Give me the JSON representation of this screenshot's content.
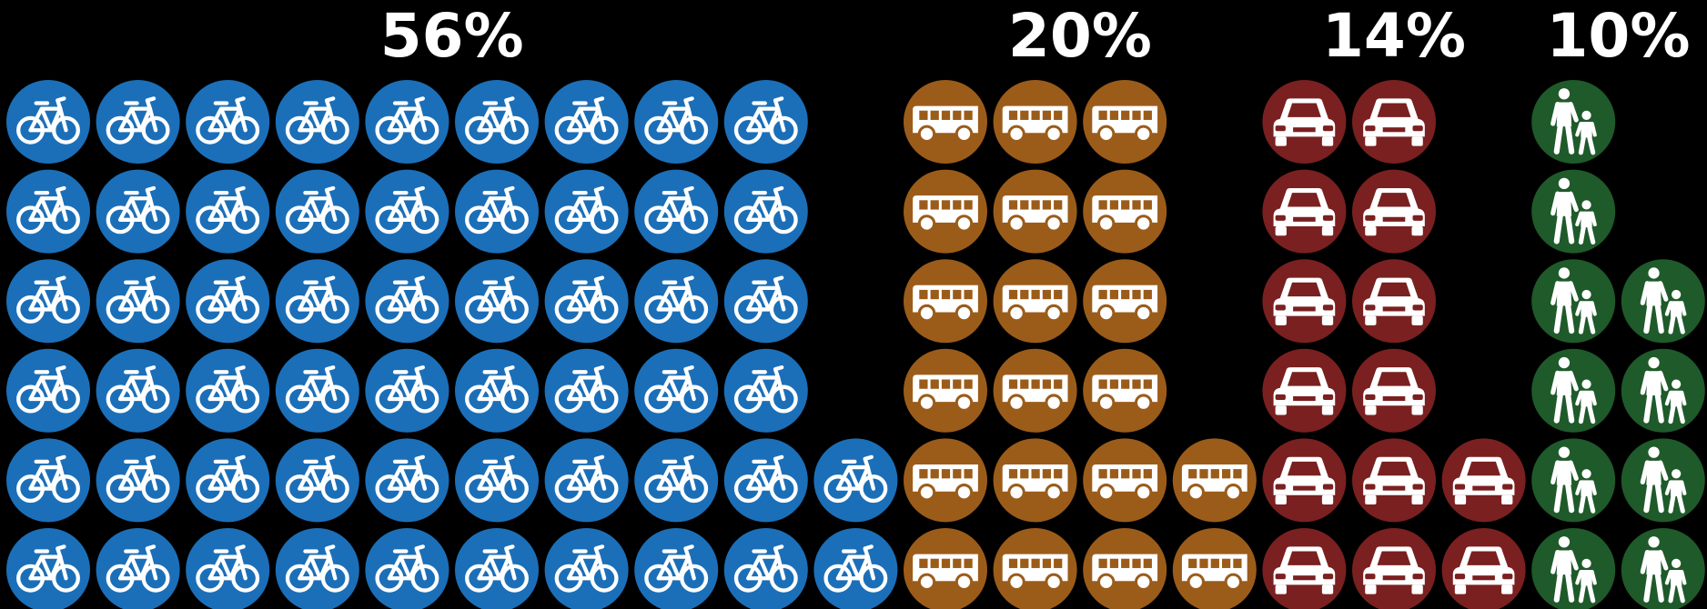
{
  "chart_data": {
    "type": "pictogram",
    "series": [
      {
        "name": "bike",
        "label": "56%",
        "value": 56,
        "color": "#1b6fb8",
        "icon": "bicycle-icon"
      },
      {
        "name": "bus",
        "label": "20%",
        "value": 20,
        "color": "#9b5c1a",
        "icon": "bus-icon"
      },
      {
        "name": "car",
        "label": "14%",
        "value": 14,
        "color": "#7a2020",
        "icon": "car-icon"
      },
      {
        "name": "walk",
        "label": "10%",
        "value": 10,
        "color": "#1f5a2a",
        "icon": "pedestrians-icon"
      }
    ]
  }
}
